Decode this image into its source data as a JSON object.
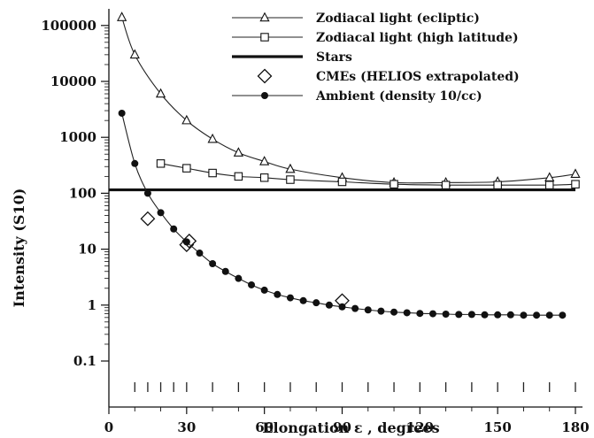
{
  "chart_data": {
    "type": "line",
    "title": "",
    "xlabel": "Elongation ε , degrees",
    "ylabel": "Intensity (S10)",
    "xlim": [
      0,
      180
    ],
    "ylim": [
      0.05,
      200000
    ],
    "yscale": "log",
    "grid": false,
    "legend_position": "top-right",
    "x_ticks": [
      0,
      30,
      60,
      90,
      120,
      150,
      180
    ],
    "x_tick_labels": [
      "0",
      "30",
      "60",
      "90",
      "120",
      "150",
      "180"
    ],
    "y_ticks": [
      0.1,
      1,
      10,
      100,
      1000,
      10000,
      100000
    ],
    "y_tick_labels": [
      "0.1",
      "1",
      "10",
      "100",
      "1000",
      "10000",
      "100000"
    ],
    "inner_x_marks": [
      10,
      15,
      20,
      25,
      30,
      40,
      50,
      60,
      70,
      80,
      90,
      100,
      110,
      120,
      130,
      140,
      150,
      160,
      170,
      180
    ],
    "series": [
      {
        "name": "Zodiacal light (ecliptic)",
        "marker": "triangle",
        "line": "thin",
        "x": [
          5,
          10,
          20,
          30,
          40,
          50,
          60,
          70,
          90,
          110,
          130,
          150,
          170,
          180
        ],
        "y": [
          140000,
          30000,
          6000,
          2000,
          930,
          530,
          370,
          270,
          190,
          155,
          155,
          160,
          190,
          220
        ]
      },
      {
        "name": "Zodiacal light (high latitude)",
        "marker": "square",
        "line": "thin",
        "x": [
          20,
          30,
          40,
          50,
          60,
          70,
          90,
          110,
          130,
          150,
          170,
          180
        ],
        "y": [
          340,
          280,
          230,
          200,
          190,
          175,
          160,
          145,
          140,
          140,
          140,
          145
        ]
      },
      {
        "name": "Stars",
        "marker": "none",
        "line": "thick",
        "x": [
          0,
          180
        ],
        "y": [
          115,
          115
        ]
      },
      {
        "name": "CMEs (HELIOS extrapolated)",
        "marker": "diamond",
        "line": "none",
        "x": [
          15,
          30,
          31,
          90
        ],
        "y": [
          35,
          12,
          14,
          1.2
        ]
      },
      {
        "name": "Ambient (density 10/cc)",
        "marker": "circle",
        "line": "thin",
        "x": [
          5,
          10,
          15,
          20,
          25,
          30,
          35,
          40,
          45,
          50,
          55,
          60,
          65,
          70,
          75,
          80,
          85,
          90,
          95,
          100,
          105,
          110,
          115,
          120,
          125,
          130,
          135,
          140,
          145,
          150,
          155,
          160,
          165,
          170,
          175
        ],
        "y": [
          2700,
          340,
          100,
          45,
          23,
          13.5,
          8.5,
          5.5,
          4.0,
          3.0,
          2.3,
          1.85,
          1.55,
          1.35,
          1.2,
          1.1,
          1.0,
          0.93,
          0.87,
          0.82,
          0.78,
          0.75,
          0.73,
          0.71,
          0.7,
          0.69,
          0.68,
          0.68,
          0.67,
          0.67,
          0.67,
          0.66,
          0.66,
          0.66,
          0.66
        ]
      }
    ]
  }
}
